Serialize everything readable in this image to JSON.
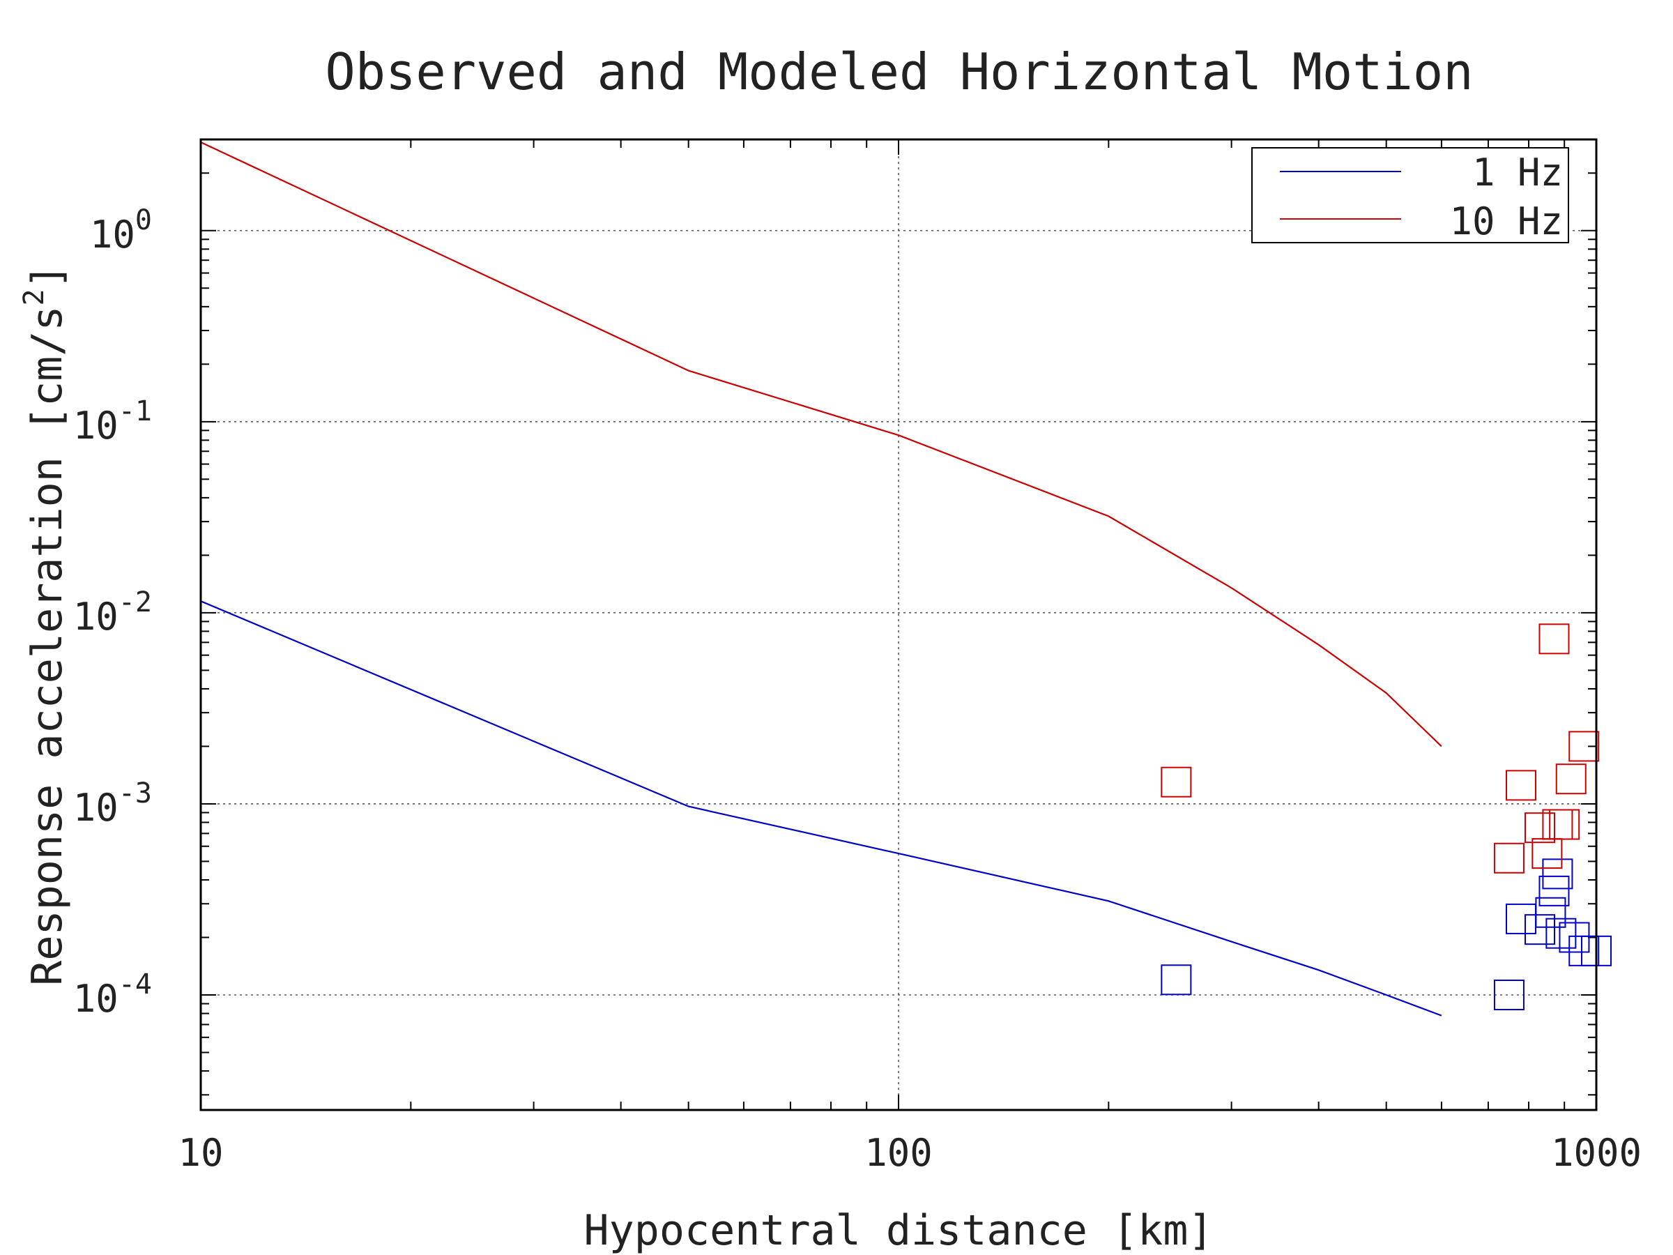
{
  "chart_data": {
    "type": "scatter",
    "title": "Observed and Modeled Horizontal Motion",
    "xlabel": "Hypocentral distance [km]",
    "ylabel": "Response acceleration [cm/s",
    "ylabel_exponent": "2",
    "ylabel_close": "]",
    "x_scale": "log",
    "y_scale": "log",
    "xlim": [
      10,
      1000
    ],
    "ylim": [
      2.5e-05,
      3.0
    ],
    "grid": true,
    "legend_position": "top-right",
    "x_ticks": [
      {
        "value": 10,
        "label": "10"
      },
      {
        "value": 100,
        "label": "100"
      },
      {
        "value": 1000,
        "label": "1000"
      }
    ],
    "y_ticks": [
      {
        "value": 1,
        "base": "10",
        "exp": "0"
      },
      {
        "value": 0.1,
        "base": "10",
        "exp": "-1"
      },
      {
        "value": 0.01,
        "base": "10",
        "exp": "-2"
      },
      {
        "value": 0.001,
        "base": "10",
        "exp": "-3"
      },
      {
        "value": 0.0001,
        "base": "10",
        "exp": "-4"
      }
    ],
    "series": [
      {
        "name": "1 Hz",
        "color": "#0000cc",
        "line": {
          "x": [
            10,
            50,
            100,
            200,
            300,
            400,
            500,
            600
          ],
          "y": [
            0.0115,
            0.00097,
            0.00055,
            0.00031,
            0.00019,
            0.000135,
            0.0001,
            7.8e-05
          ]
        },
        "observed": {
          "x": [
            250,
            750,
            780,
            830,
            860,
            870,
            880,
            890,
            930,
            960,
            1000
          ],
          "y": [
            0.00012,
            0.0001,
            0.00025,
            0.00022,
            0.00027,
            0.00035,
            0.00043,
            0.00021,
            0.0002,
            0.00017,
            0.00017
          ]
        }
      },
      {
        "name": "10 Hz",
        "color": "#cc0000",
        "line": {
          "x": [
            10,
            50,
            100,
            200,
            300,
            400,
            500,
            600
          ],
          "y": [
            2.9,
            0.185,
            0.085,
            0.032,
            0.0135,
            0.0068,
            0.0038,
            0.002
          ]
        },
        "observed": {
          "x": [
            250,
            750,
            780,
            830,
            850,
            870,
            880,
            900,
            920,
            960
          ],
          "y": [
            0.0013,
            0.00052,
            0.00125,
            0.00075,
            0.00055,
            0.0073,
            0.00078,
            0.00078,
            0.00135,
            0.002
          ]
        }
      }
    ]
  }
}
